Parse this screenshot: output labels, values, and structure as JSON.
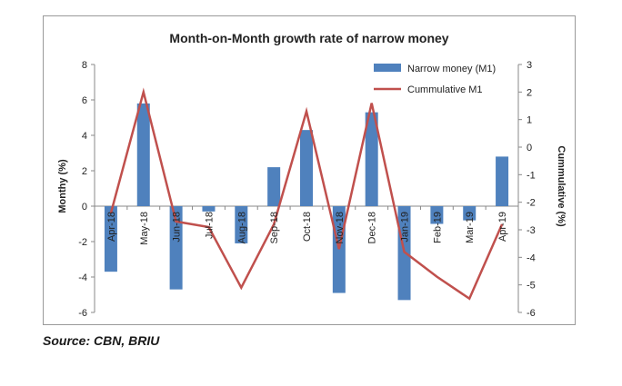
{
  "page": {
    "source": "Source: CBN, BRIU"
  },
  "chart_data": {
    "type": "bar",
    "title": "Month-on-Month growth rate of narrow money",
    "categories": [
      "Apr-18",
      "May-18",
      "Jun-18",
      "Jul-18",
      "Aug-18",
      "Sep-18",
      "Oct-18",
      "Nov-18",
      "Dec-18",
      "Jan-19",
      "Feb-19",
      "Mar-19",
      "Apr-19"
    ],
    "series": [
      {
        "name": "Narrow money (M1)",
        "type": "bar",
        "axis": "left",
        "color": "#4f81bd",
        "values": [
          -3.7,
          5.8,
          -4.7,
          -0.3,
          -2.1,
          2.2,
          4.3,
          -4.9,
          5.3,
          -5.3,
          -1.0,
          -0.8,
          2.8
        ]
      },
      {
        "name": "Cummulative  M1",
        "type": "line",
        "axis": "right",
        "color": "#c0504d",
        "values": [
          -2.4,
          2.0,
          -2.7,
          -2.9,
          -5.1,
          -2.8,
          1.3,
          -3.7,
          1.6,
          -3.8,
          -4.7,
          -5.5,
          -2.8
        ]
      }
    ],
    "ylabel": "Monthy (%)",
    "y2label": "Cummulative (%)",
    "ylim": [
      -6,
      8
    ],
    "y2lim": [
      -6,
      3
    ],
    "yticks": [
      "8",
      "6",
      "4",
      "2",
      "0",
      "-2",
      "-4",
      "-6"
    ],
    "y2ticks": [
      "3",
      "2",
      "1",
      "0",
      "-1",
      "-2",
      "-3",
      "-4",
      "-5",
      "-6"
    ],
    "legend_position": "top-right"
  }
}
